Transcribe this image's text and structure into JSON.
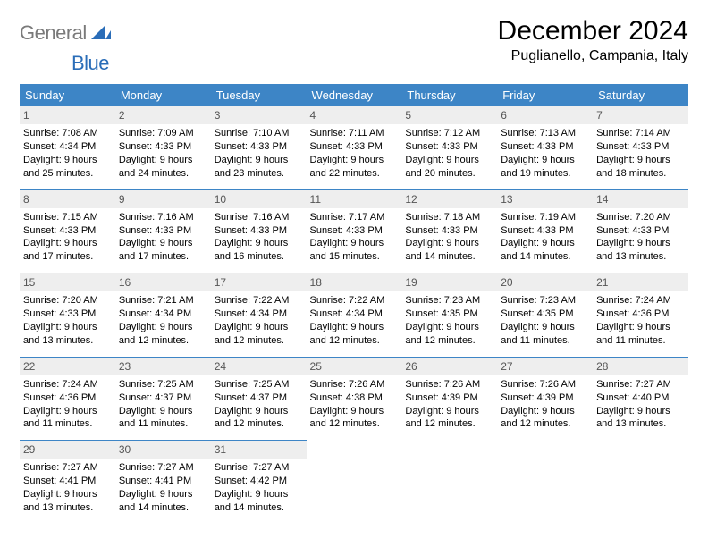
{
  "brand": {
    "part1": "General",
    "part2": "Blue"
  },
  "title": "December 2024",
  "location": "Puglianello, Campania, Italy",
  "colors": {
    "header_bg": "#3d85c6",
    "header_text": "#ffffff",
    "day_bg": "#eeeeee",
    "border": "#3d85c6",
    "logo_gray": "#7a7a7a",
    "logo_blue": "#2a6db8"
  },
  "day_headers": [
    "Sunday",
    "Monday",
    "Tuesday",
    "Wednesday",
    "Thursday",
    "Friday",
    "Saturday"
  ],
  "labels": {
    "sunrise": "Sunrise: ",
    "sunset": "Sunset: ",
    "daylight_pre": "Daylight: ",
    "daylight_mid": " hours and ",
    "daylight_post": " minutes."
  },
  "weeks": [
    [
      {
        "day": 1,
        "sunrise": "7:08 AM",
        "sunset": "4:34 PM",
        "dl_h": 9,
        "dl_m": 25
      },
      {
        "day": 2,
        "sunrise": "7:09 AM",
        "sunset": "4:33 PM",
        "dl_h": 9,
        "dl_m": 24
      },
      {
        "day": 3,
        "sunrise": "7:10 AM",
        "sunset": "4:33 PM",
        "dl_h": 9,
        "dl_m": 23
      },
      {
        "day": 4,
        "sunrise": "7:11 AM",
        "sunset": "4:33 PM",
        "dl_h": 9,
        "dl_m": 22
      },
      {
        "day": 5,
        "sunrise": "7:12 AM",
        "sunset": "4:33 PM",
        "dl_h": 9,
        "dl_m": 20
      },
      {
        "day": 6,
        "sunrise": "7:13 AM",
        "sunset": "4:33 PM",
        "dl_h": 9,
        "dl_m": 19
      },
      {
        "day": 7,
        "sunrise": "7:14 AM",
        "sunset": "4:33 PM",
        "dl_h": 9,
        "dl_m": 18
      }
    ],
    [
      {
        "day": 8,
        "sunrise": "7:15 AM",
        "sunset": "4:33 PM",
        "dl_h": 9,
        "dl_m": 17
      },
      {
        "day": 9,
        "sunrise": "7:16 AM",
        "sunset": "4:33 PM",
        "dl_h": 9,
        "dl_m": 17
      },
      {
        "day": 10,
        "sunrise": "7:16 AM",
        "sunset": "4:33 PM",
        "dl_h": 9,
        "dl_m": 16
      },
      {
        "day": 11,
        "sunrise": "7:17 AM",
        "sunset": "4:33 PM",
        "dl_h": 9,
        "dl_m": 15
      },
      {
        "day": 12,
        "sunrise": "7:18 AM",
        "sunset": "4:33 PM",
        "dl_h": 9,
        "dl_m": 14
      },
      {
        "day": 13,
        "sunrise": "7:19 AM",
        "sunset": "4:33 PM",
        "dl_h": 9,
        "dl_m": 14
      },
      {
        "day": 14,
        "sunrise": "7:20 AM",
        "sunset": "4:33 PM",
        "dl_h": 9,
        "dl_m": 13
      }
    ],
    [
      {
        "day": 15,
        "sunrise": "7:20 AM",
        "sunset": "4:33 PM",
        "dl_h": 9,
        "dl_m": 13
      },
      {
        "day": 16,
        "sunrise": "7:21 AM",
        "sunset": "4:34 PM",
        "dl_h": 9,
        "dl_m": 12
      },
      {
        "day": 17,
        "sunrise": "7:22 AM",
        "sunset": "4:34 PM",
        "dl_h": 9,
        "dl_m": 12
      },
      {
        "day": 18,
        "sunrise": "7:22 AM",
        "sunset": "4:34 PM",
        "dl_h": 9,
        "dl_m": 12
      },
      {
        "day": 19,
        "sunrise": "7:23 AM",
        "sunset": "4:35 PM",
        "dl_h": 9,
        "dl_m": 12
      },
      {
        "day": 20,
        "sunrise": "7:23 AM",
        "sunset": "4:35 PM",
        "dl_h": 9,
        "dl_m": 11
      },
      {
        "day": 21,
        "sunrise": "7:24 AM",
        "sunset": "4:36 PM",
        "dl_h": 9,
        "dl_m": 11
      }
    ],
    [
      {
        "day": 22,
        "sunrise": "7:24 AM",
        "sunset": "4:36 PM",
        "dl_h": 9,
        "dl_m": 11
      },
      {
        "day": 23,
        "sunrise": "7:25 AM",
        "sunset": "4:37 PM",
        "dl_h": 9,
        "dl_m": 11
      },
      {
        "day": 24,
        "sunrise": "7:25 AM",
        "sunset": "4:37 PM",
        "dl_h": 9,
        "dl_m": 12
      },
      {
        "day": 25,
        "sunrise": "7:26 AM",
        "sunset": "4:38 PM",
        "dl_h": 9,
        "dl_m": 12
      },
      {
        "day": 26,
        "sunrise": "7:26 AM",
        "sunset": "4:39 PM",
        "dl_h": 9,
        "dl_m": 12
      },
      {
        "day": 27,
        "sunrise": "7:26 AM",
        "sunset": "4:39 PM",
        "dl_h": 9,
        "dl_m": 12
      },
      {
        "day": 28,
        "sunrise": "7:27 AM",
        "sunset": "4:40 PM",
        "dl_h": 9,
        "dl_m": 13
      }
    ],
    [
      {
        "day": 29,
        "sunrise": "7:27 AM",
        "sunset": "4:41 PM",
        "dl_h": 9,
        "dl_m": 13
      },
      {
        "day": 30,
        "sunrise": "7:27 AM",
        "sunset": "4:41 PM",
        "dl_h": 9,
        "dl_m": 14
      },
      {
        "day": 31,
        "sunrise": "7:27 AM",
        "sunset": "4:42 PM",
        "dl_h": 9,
        "dl_m": 14
      },
      null,
      null,
      null,
      null
    ]
  ]
}
